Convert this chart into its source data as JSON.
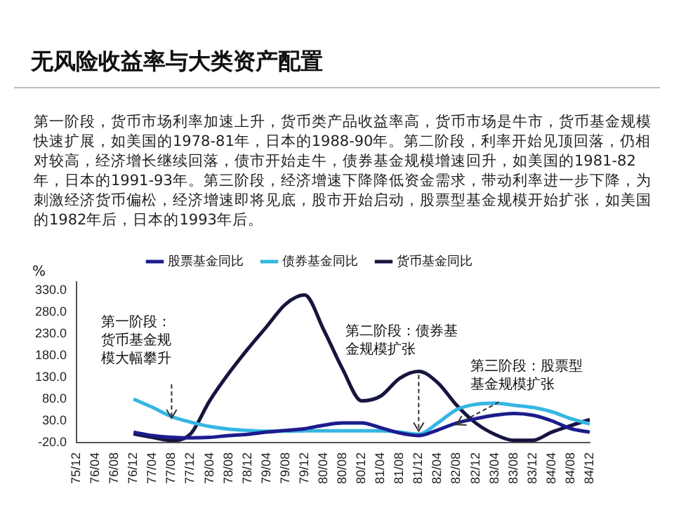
{
  "chart_data": {
    "type": "line",
    "title": "无风险收益率与大类资产配置",
    "subtitle": "第一阶段，货币市场利率加速上升，货币类产品收益率高，货币市场是牛市，货币基金规模快速扩展，如美国的1978-81年，日本的1988-90年。第二阶段，利率开始见顶回落，仍相对较高，经济增长继续回落，债市开始走牛，债券基金规模增速回升，如美国的1981-82年，日本的1991-93年。第三阶段，经济增速下降降低资金需求，带动利率进一步下降，为刺激经济货币偏松，经济增速即将见底，股市开始启动，股票型基金规模开始扩张，如美国的1982年后，日本的1993年后。",
    "ylabel": "%",
    "categories": [
      "75/12",
      "76/04",
      "76/08",
      "76/12",
      "77/04",
      "77/08",
      "77/12",
      "78/04",
      "78/08",
      "78/12",
      "79/04",
      "79/08",
      "79/12",
      "80/04",
      "80/08",
      "80/12",
      "81/04",
      "81/08",
      "81/12",
      "82/04",
      "82/08",
      "82/12",
      "83/04",
      "83/08",
      "83/12",
      "84/04",
      "84/08",
      "84/12"
    ],
    "series": [
      {
        "name": "股票基金同比",
        "color": "#1c1c8e",
        "values": [
          null,
          null,
          null,
          4,
          -4,
          -8,
          -9,
          -8,
          -4,
          -1,
          4,
          8,
          12,
          20,
          25,
          25,
          14,
          2,
          -4,
          9,
          25,
          35,
          43,
          47,
          43,
          30,
          12,
          4
        ]
      },
      {
        "name": "债券基金同比",
        "color": "#35b6e2",
        "values": [
          null,
          null,
          null,
          80,
          61,
          40,
          27,
          17,
          11,
          8,
          6,
          6,
          7,
          7,
          7,
          7,
          7,
          4,
          -1,
          25,
          56,
          68,
          71,
          66,
          61,
          51,
          35,
          23
        ]
      },
      {
        "name": "货币基金同比",
        "color": "#15153f",
        "values": [
          null,
          null,
          null,
          0,
          -8,
          -15,
          0,
          76,
          139,
          195,
          247,
          299,
          320,
          240,
          149,
          76,
          87,
          128,
          144,
          118,
          66,
          25,
          -1,
          -15,
          -15,
          4,
          19,
          33
        ]
      }
    ],
    "ylim": [
      -20,
      350
    ],
    "yticks": [
      {
        "value": -20,
        "label": "-20.0"
      },
      {
        "value": 30,
        "label": "30.0"
      },
      {
        "value": 80,
        "label": "80.0"
      },
      {
        "value": 130,
        "label": "130.0"
      },
      {
        "value": 180,
        "label": "180.0"
      },
      {
        "value": 230,
        "label": "230.0"
      },
      {
        "value": 280,
        "label": "280.0"
      },
      {
        "value": 330,
        "label": "330.0"
      }
    ],
    "grid": false,
    "legend": "top",
    "marker": "none",
    "line_style": "solid",
    "annotations": [
      {
        "text": "第一阶段：货币基金规模大幅攀升",
        "x": "77/08",
        "y": 30
      },
      {
        "text": "第二阶段：债券基金规模扩张",
        "x": "81/12",
        "y": 0
      },
      {
        "text": "第三阶段：股票型基金规模扩张",
        "x": "82/08",
        "y": 15
      }
    ]
  }
}
